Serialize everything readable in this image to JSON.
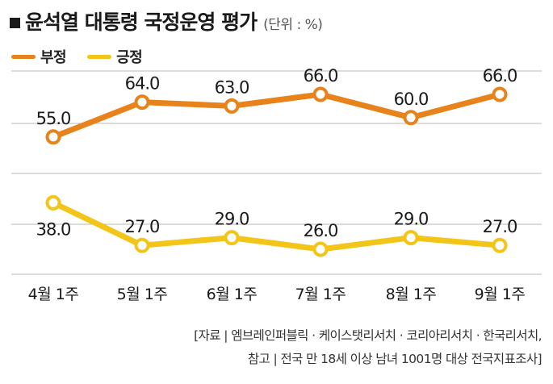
{
  "header": {
    "title": "윤석열 대통령 국정운영 평가",
    "unit": "(단위 : %)"
  },
  "legend": {
    "items": [
      {
        "label": "부정",
        "color": "#e8821b"
      },
      {
        "label": "긍정",
        "color": "#f2c518"
      }
    ]
  },
  "source": {
    "line1": "[자료 | 엠브레인퍼블릭 · 케이스탯리서치 · 코리아리서치 · 한국리서치,",
    "line2": "참고 | 전국 만 18세 이상 남녀 1001명 대상 전국지표조사]"
  },
  "chart_data": {
    "type": "line",
    "categories": [
      "4월 1주",
      "5월 1주",
      "6월 1주",
      "7월 1주",
      "8월 1주",
      "9월 1주"
    ],
    "series": [
      {
        "name": "부정",
        "color": "#e8821b",
        "values": [
          55.0,
          64.0,
          63.0,
          66.0,
          60.0,
          66.0
        ],
        "labels": [
          "55.0",
          "64.0",
          "63.0",
          "66.0",
          "60.0",
          "66.0"
        ]
      },
      {
        "name": "긍정",
        "color": "#f2c518",
        "values": [
          38.0,
          27.0,
          29.0,
          26.0,
          29.0,
          27.0
        ],
        "labels": [
          "38.0",
          "27.0",
          "29.0",
          "26.0",
          "29.0",
          "27.0"
        ]
      }
    ],
    "grid": true,
    "legend_position": "top-left"
  }
}
